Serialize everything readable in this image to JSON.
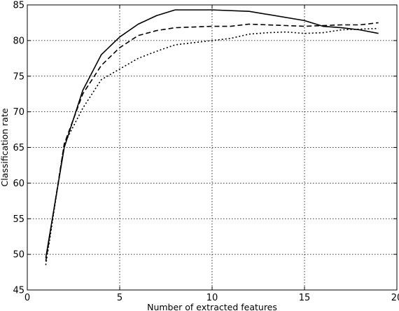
{
  "chart_data": {
    "type": "line",
    "title": "",
    "xlabel": "Number of extracted features",
    "ylabel": "Classification rate",
    "xlim": [
      0,
      20
    ],
    "ylim": [
      45,
      85
    ],
    "xticks": [
      0,
      5,
      10,
      15,
      20
    ],
    "yticks": [
      45,
      50,
      55,
      60,
      65,
      70,
      75,
      80,
      85
    ],
    "grid": true,
    "grid_style": "dotted",
    "legend": null,
    "series": [
      {
        "style": "solid",
        "color": "#000000",
        "points": [
          [
            1,
            49.5
          ],
          [
            2,
            65.0
          ],
          [
            3,
            73.0
          ],
          [
            4,
            78.0
          ],
          [
            5,
            80.5
          ],
          [
            6,
            82.3
          ],
          [
            7,
            83.5
          ],
          [
            8,
            84.3
          ],
          [
            10,
            84.3
          ],
          [
            12,
            84.1
          ],
          [
            15,
            82.8
          ],
          [
            16,
            82.0
          ],
          [
            17,
            81.8
          ],
          [
            18,
            81.5
          ],
          [
            19,
            81.0
          ]
        ]
      },
      {
        "style": "dashed",
        "color": "#000000",
        "points": [
          [
            1,
            49.0
          ],
          [
            2,
            65.5
          ],
          [
            3,
            72.5
          ],
          [
            4,
            76.5
          ],
          [
            5,
            79.0
          ],
          [
            6,
            80.7
          ],
          [
            7,
            81.4
          ],
          [
            8,
            81.8
          ],
          [
            10,
            82.0
          ],
          [
            11,
            82.0
          ],
          [
            12,
            82.3
          ],
          [
            13,
            82.2
          ],
          [
            14,
            82.1
          ],
          [
            15,
            82.0
          ],
          [
            16,
            82.1
          ],
          [
            17,
            82.2
          ],
          [
            18,
            82.2
          ],
          [
            19,
            82.5
          ]
        ]
      },
      {
        "style": "dotted",
        "color": "#000000",
        "points": [
          [
            1,
            48.5
          ],
          [
            2,
            65.5
          ],
          [
            3,
            70.5
          ],
          [
            4,
            74.5
          ],
          [
            5,
            76.0
          ],
          [
            6,
            77.5
          ],
          [
            7,
            78.5
          ],
          [
            8,
            79.4
          ],
          [
            9,
            79.7
          ],
          [
            10,
            80.0
          ],
          [
            11,
            80.3
          ],
          [
            12,
            80.9
          ],
          [
            13,
            81.1
          ],
          [
            14,
            81.2
          ],
          [
            15,
            81.0
          ],
          [
            16,
            81.1
          ],
          [
            17,
            81.5
          ],
          [
            18,
            81.6
          ],
          [
            19,
            81.7
          ]
        ]
      }
    ]
  }
}
